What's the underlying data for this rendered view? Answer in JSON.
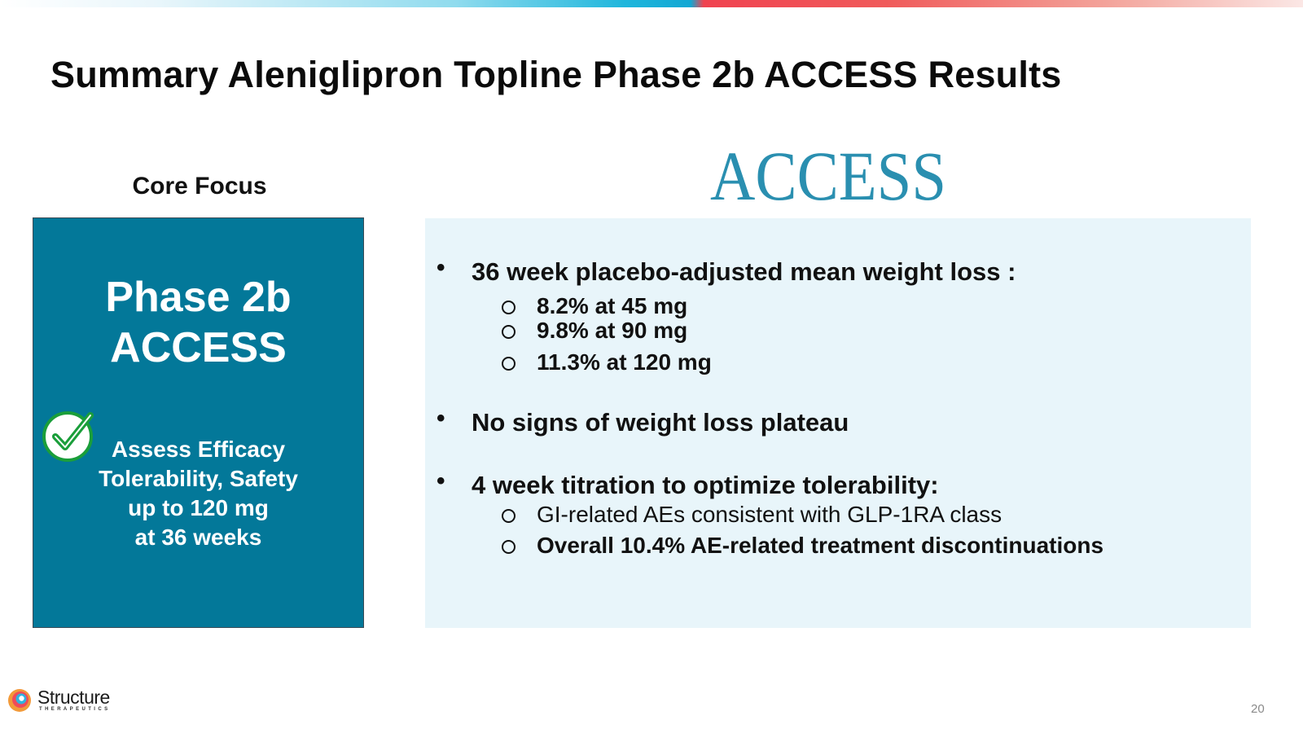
{
  "slide": {
    "title": "Summary Aleniglipron Topline Phase 2b ACCESS Results",
    "page_number": "20"
  },
  "logo_access": {
    "text": "ACCESS"
  },
  "core_focus": {
    "label": "Core Focus",
    "heading_line1": "Phase 2b",
    "heading_line2": "ACCESS",
    "desc_lines": [
      "Assess Efficacy",
      "Tolerability, Safety",
      "up to 120 mg",
      "at 36 weeks"
    ]
  },
  "results": {
    "bullets": [
      {
        "text": "36 week placebo-adjusted mean weight loss :",
        "subitems": [
          "8.2% at 45 mg",
          "9.8% at 90 mg",
          "11.3% at 120 mg"
        ]
      },
      {
        "text": "No signs of weight loss plateau",
        "subitems": []
      },
      {
        "text": "4 week titration to optimize tolerability:",
        "subitems": [
          "GI-related AEs consistent with GLP-1RA class",
          "Overall 10.4% AE-related treatment discontinuations"
        ]
      }
    ]
  },
  "brand": {
    "name": "Structure",
    "sub": "THERAPEUTICS"
  },
  "colors": {
    "focus_box": "#037899",
    "panel": "#e8f5fa",
    "access_logo": "#2a8fb0",
    "check": "#1a9e3a"
  }
}
